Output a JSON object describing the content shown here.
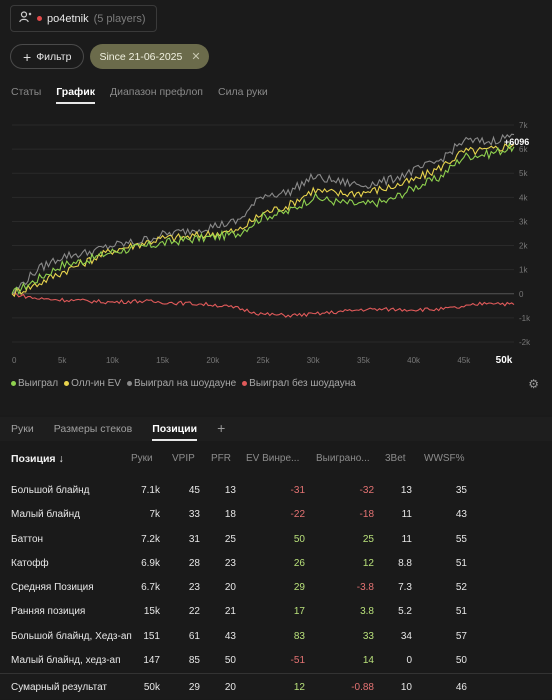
{
  "player": {
    "name": "po4etnik",
    "count": "(5 players)"
  },
  "filter": {
    "button_label": "Фильтр",
    "since_label": "Since 21-06-2025"
  },
  "main_tabs": [
    "Статы",
    "График",
    "Диапазон префлоп",
    "Сила руки"
  ],
  "chart_data": {
    "type": "line",
    "x_ticks": [
      "0",
      "5k",
      "10k",
      "15k",
      "20k",
      "25k",
      "30k",
      "35k",
      "40k",
      "45k",
      "50k"
    ],
    "y_ticks": [
      "7k",
      "6k",
      "5k",
      "4k",
      "3k",
      "2k",
      "1k",
      "0",
      "-1k",
      "-2k"
    ],
    "xlim": [
      0,
      50000
    ],
    "ylim": [
      -2000,
      7000
    ],
    "end_label": "+6096",
    "series": [
      {
        "name": "Выиграл",
        "color": "#8fd14f",
        "x": [
          0,
          2500,
          5000,
          7500,
          10000,
          12500,
          15000,
          17500,
          20000,
          22500,
          25000,
          27500,
          30000,
          32500,
          35000,
          37500,
          40000,
          42500,
          45000,
          47500,
          50000
        ],
        "values": [
          0,
          600,
          1200,
          1400,
          1750,
          1900,
          2100,
          2250,
          2350,
          2500,
          3200,
          3400,
          4000,
          3800,
          3700,
          3850,
          4400,
          4800,
          5700,
          5800,
          6096
        ]
      },
      {
        "name": "Олл-ин EV",
        "color": "#e8d44d",
        "x": [
          0,
          2500,
          5000,
          7500,
          10000,
          12500,
          15000,
          17500,
          20000,
          22500,
          25000,
          27500,
          30000,
          32500,
          35000,
          37500,
          40000,
          42500,
          45000,
          47500,
          50000
        ],
        "values": [
          0,
          400,
          900,
          1350,
          1800,
          2050,
          2300,
          2350,
          2500,
          2600,
          3350,
          3650,
          4300,
          4150,
          4200,
          4400,
          4700,
          5200,
          5900,
          5950,
          6200
        ]
      },
      {
        "name": "Выиграл на шоудауне",
        "color": "#8a8a8a",
        "x": [
          0,
          2500,
          5000,
          7500,
          10000,
          12500,
          15000,
          17500,
          20000,
          22500,
          25000,
          27500,
          30000,
          32500,
          35000,
          37500,
          40000,
          42500,
          45000,
          47500,
          50000
        ],
        "values": [
          0,
          1000,
          1550,
          1700,
          2000,
          2150,
          2450,
          2600,
          2800,
          3000,
          4100,
          4200,
          4850,
          4650,
          4500,
          4700,
          5100,
          5500,
          6350,
          6300,
          6600
        ]
      },
      {
        "name": "Выиграл без шоудауна",
        "color": "#e05a5a",
        "x": [
          0,
          2500,
          5000,
          7500,
          10000,
          12500,
          15000,
          17500,
          20000,
          22500,
          25000,
          27500,
          30000,
          32500,
          35000,
          37500,
          40000,
          42500,
          45000,
          47500,
          50000
        ],
        "values": [
          0,
          -200,
          -250,
          -300,
          -350,
          -300,
          -350,
          -400,
          -450,
          -600,
          -850,
          -900,
          -850,
          -750,
          -650,
          -650,
          -650,
          -650,
          -550,
          -350,
          -450
        ]
      }
    ]
  },
  "bottom_tabs": [
    "Руки",
    "Размеры стеков",
    "Позиции"
  ],
  "table": {
    "headers": [
      "Позиция ↓",
      "Руки",
      "VPIP",
      "PFR",
      "EV Винре...",
      "Выиграно...",
      "3Bet",
      "WWSF%"
    ],
    "rows": [
      [
        "Большой блайнд",
        "7.1k",
        "45",
        "13",
        "-31",
        "-32",
        "13",
        "35"
      ],
      [
        "Малый блайнд",
        "7k",
        "33",
        "18",
        "-22",
        "-18",
        "11",
        "43"
      ],
      [
        "Баттон",
        "7.2k",
        "31",
        "25",
        "50",
        "25",
        "11",
        "55"
      ],
      [
        "Катофф",
        "6.9k",
        "28",
        "23",
        "26",
        "12",
        "8.8",
        "51"
      ],
      [
        "Средняя Позиция",
        "6.7k",
        "23",
        "20",
        "29",
        "-3.8",
        "7.3",
        "52"
      ],
      [
        "Ранняя позиция",
        "15k",
        "22",
        "21",
        "17",
        "3.8",
        "5.2",
        "51"
      ],
      [
        "Большой блайнд, Хедз-ап",
        "151",
        "61",
        "43",
        "83",
        "33",
        "34",
        "57"
      ],
      [
        "Малый блайнд, хедз-ап",
        "147",
        "85",
        "50",
        "-51",
        "14",
        "0",
        "50"
      ]
    ],
    "total": [
      "Сумарный результат",
      "50k",
      "29",
      "20",
      "12",
      "-0.88",
      "10",
      "46"
    ]
  }
}
